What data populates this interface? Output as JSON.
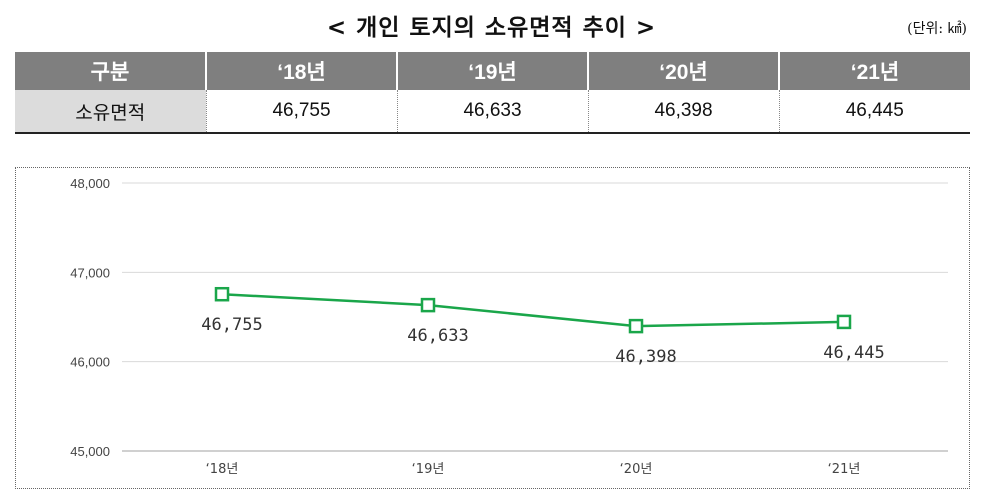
{
  "title": "< 개인 토지의 소유면적 추이 >",
  "unit": "(단위: ㎢)",
  "table": {
    "header": [
      "구분",
      "‘18년",
      "‘19년",
      "‘20년",
      "‘21년"
    ],
    "row_label": "소유면적",
    "values": [
      "46,755",
      "46,633",
      "46,398",
      "46,445"
    ]
  },
  "chart_data": {
    "type": "line",
    "categories": [
      "‘18년",
      "‘19년",
      "‘20년",
      "‘21년"
    ],
    "series": [
      {
        "values": [
          46755,
          46633,
          46398,
          46445
        ],
        "color": "#1aa64a"
      }
    ],
    "data_labels": [
      "46,755",
      "46,633",
      "46,398",
      "46,445"
    ],
    "y_ticks": [
      "45,000",
      "46,000",
      "47,000",
      "48,000"
    ],
    "ylim": [
      45000,
      48000
    ],
    "grid": true,
    "marker": "hollow-square"
  }
}
